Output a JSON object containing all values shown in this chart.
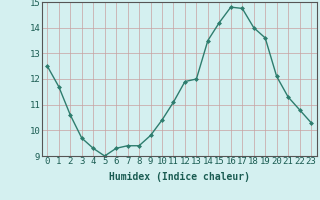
{
  "x": [
    0,
    1,
    2,
    3,
    4,
    5,
    6,
    7,
    8,
    9,
    10,
    11,
    12,
    13,
    14,
    15,
    16,
    17,
    18,
    19,
    20,
    21,
    22,
    23
  ],
  "y": [
    12.5,
    11.7,
    10.6,
    9.7,
    9.3,
    9.0,
    9.3,
    9.4,
    9.4,
    9.8,
    10.4,
    11.1,
    11.9,
    12.0,
    13.5,
    14.2,
    14.8,
    14.75,
    14.0,
    13.6,
    12.1,
    11.3,
    10.8,
    10.3
  ],
  "line_color": "#2e7d6e",
  "bg_color": "#d4f0f0",
  "grid_color": "#c8a0a0",
  "xlabel": "Humidex (Indice chaleur)",
  "ylim": [
    9,
    15
  ],
  "xlim_min": -0.5,
  "xlim_max": 23.5,
  "yticks": [
    9,
    10,
    11,
    12,
    13,
    14,
    15
  ],
  "xticks": [
    0,
    1,
    2,
    3,
    4,
    5,
    6,
    7,
    8,
    9,
    10,
    11,
    12,
    13,
    14,
    15,
    16,
    17,
    18,
    19,
    20,
    21,
    22,
    23
  ],
  "xlabel_fontsize": 7,
  "tick_fontsize": 6.5,
  "marker": "D",
  "markersize": 2,
  "linewidth": 1.0
}
